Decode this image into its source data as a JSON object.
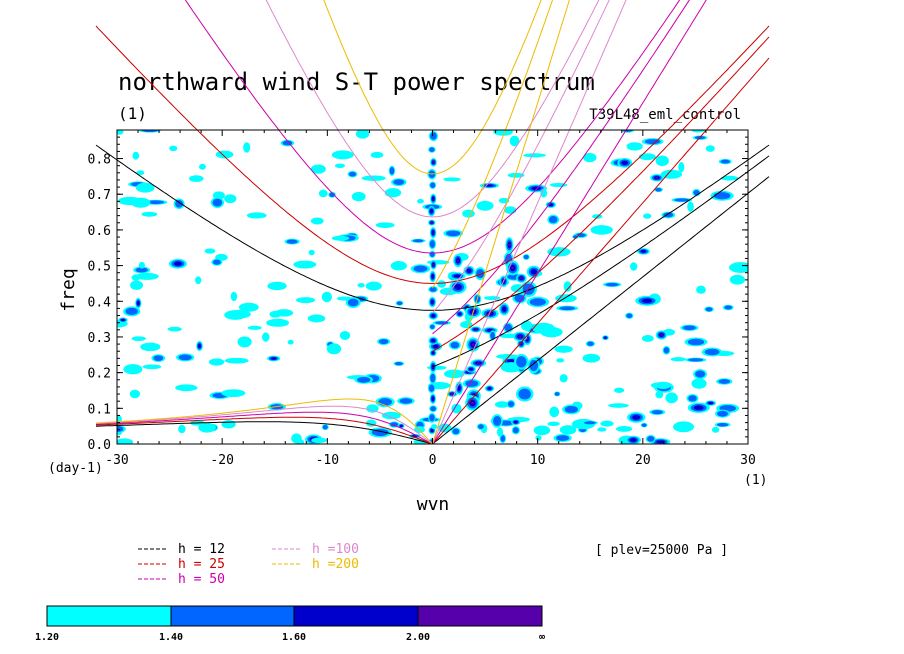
{
  "chart_data": {
    "type": "heatmap",
    "title": "northward wind S-T power spectrum",
    "subtitle": "(1)",
    "run_label": "T39L48_eml_control",
    "xlabel": "wvn",
    "ylabel": "freq",
    "x_unit": "(1)",
    "y_unit": "(day-1)",
    "xlim": [
      -30,
      30
    ],
    "ylim": [
      0,
      0.88
    ],
    "xticks": [
      -30,
      -20,
      -10,
      0,
      10,
      20,
      30
    ],
    "yticks": [
      0.0,
      0.1,
      0.2,
      0.3,
      0.4,
      0.5,
      0.6,
      0.7,
      0.8
    ],
    "level_note": "[ plev=25000 Pa ]",
    "dispersion_curves": [
      {
        "label": "h = 12",
        "h": 12,
        "color": "#000000"
      },
      {
        "label": "h = 25",
        "h": 25,
        "color": "#cc0000"
      },
      {
        "label": "h = 50",
        "h": 50,
        "color": "#cc00aa"
      },
      {
        "label": "h =100",
        "h": 100,
        "color": "#dd88cc"
      },
      {
        "label": "h =200",
        "h": 200,
        "color": "#eebb00"
      }
    ],
    "colorbar": {
      "levels": [
        "1.20",
        "1.40",
        "1.60",
        "2.00",
        "∞"
      ],
      "colors": [
        "#00ffff",
        "#0066ff",
        "#0000cc",
        "#5500aa"
      ]
    }
  }
}
